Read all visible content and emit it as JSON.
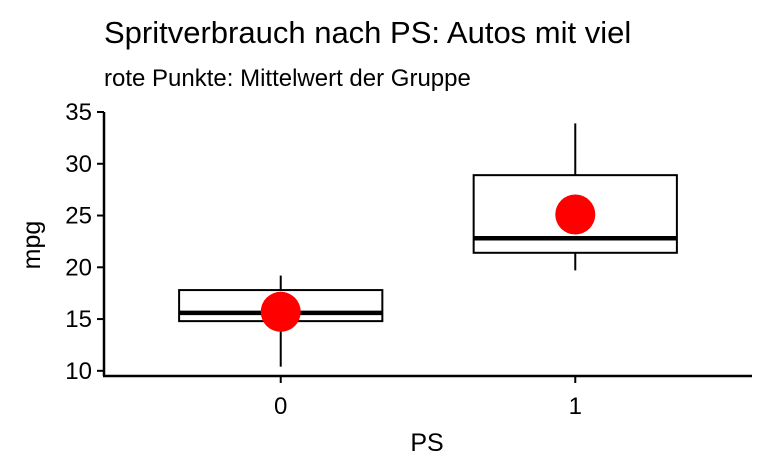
{
  "chart_data": {
    "type": "boxplot",
    "title": "Spritverbrauch nach PS: Autos mit viel",
    "subtitle": "rote Punkte: Mittelwert der Gruppe",
    "xlabel": "PS",
    "ylabel": "mpg",
    "categories": [
      "0",
      "1"
    ],
    "ylim": [
      9.5,
      35
    ],
    "yticks": [
      10,
      15,
      20,
      25,
      30,
      35
    ],
    "grid": false,
    "legend": "none",
    "boxes": [
      {
        "category": "0",
        "whisker_low": 10.4,
        "q1": 14.8,
        "median": 15.6,
        "q3": 17.8,
        "whisker_high": 19.2,
        "mean": 15.7
      },
      {
        "category": "1",
        "whisker_low": 19.7,
        "q1": 21.4,
        "median": 22.8,
        "q3": 28.9,
        "whisker_high": 33.9,
        "mean": 25.1
      }
    ],
    "colors": {
      "box": "#000000",
      "mean_point": "#ff0000"
    }
  }
}
